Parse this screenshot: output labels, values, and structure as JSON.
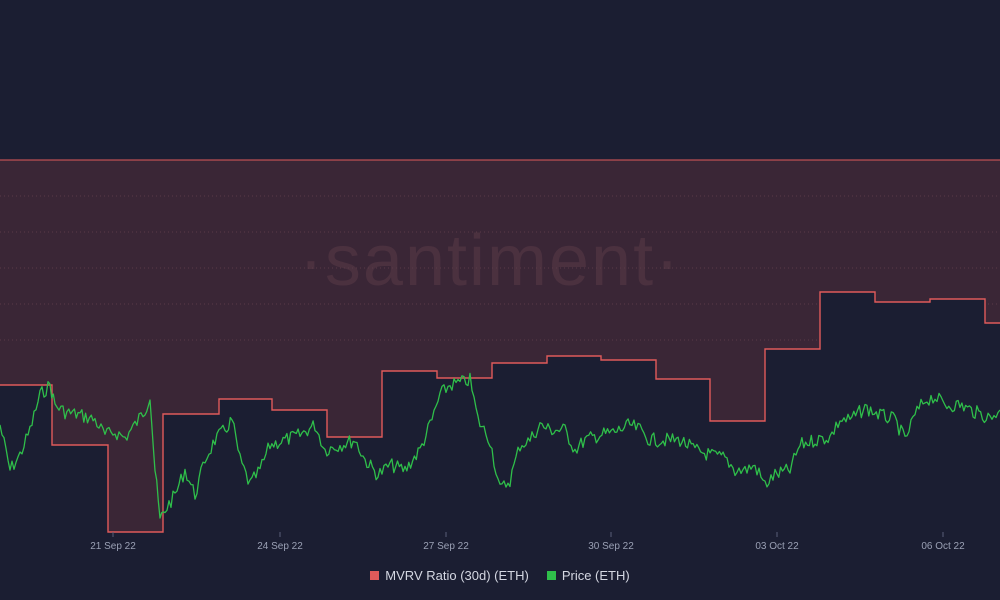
{
  "chart_data": {
    "type": "line",
    "watermark": "·santiment·",
    "x_ticks": [
      "21 Sep 22",
      "24 Sep 22",
      "27 Sep 22",
      "30 Sep 22",
      "03 Oct 22",
      "06 Oct 22"
    ],
    "series": [
      {
        "name": "MVRV Ratio (30d) (ETH)",
        "color": "#e05a5a",
        "step": true,
        "values": [
          [
            0,
            0.05
          ],
          [
            0.05,
            0.055
          ],
          [
            0.1,
            0.045
          ],
          [
            0.2,
            0.0
          ],
          [
            0.29,
            0.053
          ],
          [
            0.38,
            0.06
          ],
          [
            0.48,
            0.055
          ],
          [
            0.58,
            0.04
          ],
          [
            0.69,
            0.065
          ],
          [
            0.8,
            0.06
          ],
          [
            0.9,
            0.067
          ],
          [
            1.0,
            0.066
          ],
          [
            1.1,
            0.062
          ],
          [
            1.2,
            0.03
          ],
          [
            1.31,
            0.076
          ],
          [
            1.41,
            0.098
          ],
          [
            1.51,
            0.096
          ],
          [
            1.61,
            0.097
          ],
          [
            1.71,
            0.091
          ],
          [
            1.75,
            0.091
          ]
        ]
      },
      {
        "name": "Price (ETH)",
        "color": "#2fbf4a",
        "values": []
      }
    ],
    "band": {
      "from": 0.0,
      "to": 0.12
    }
  },
  "legend": {
    "mvrv_label": "MVRV Ratio (30d) (ETH)",
    "price_label": "Price (ETH)",
    "mvrv_color": "#e05a5a",
    "price_color": "#2fbf4a"
  }
}
